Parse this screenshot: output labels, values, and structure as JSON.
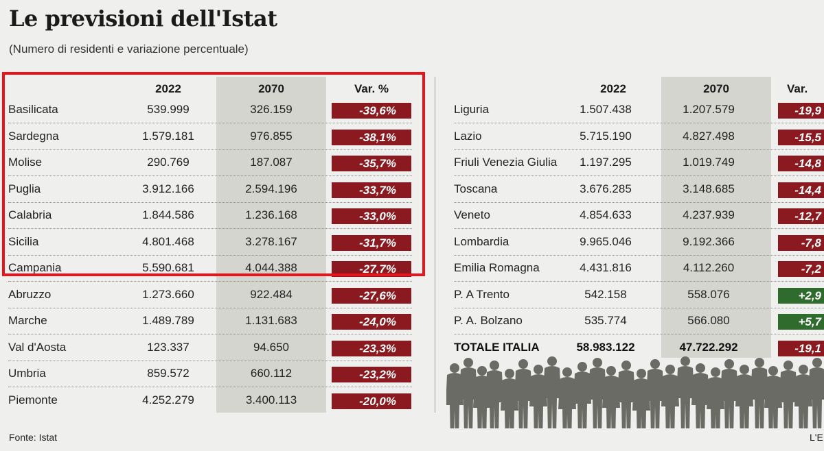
{
  "title": "Le previsioni dell'Istat",
  "subtitle": "(Numero di residenti e variazione percentuale)",
  "source": "Fonte: Istat",
  "credit": "L'E",
  "colors": {
    "negative": "#8a1a1f",
    "positive": "#2e6b2c",
    "highlight": "#e8141c",
    "shade": "#d5d5cf"
  },
  "chart_data": {
    "type": "table",
    "title": "Le previsioni dell'Istat",
    "subtitle": "(Numero di residenti e variazione percentuale)",
    "columns": [
      "",
      "2022",
      "2070",
      "Var. %"
    ],
    "right_columns": [
      "",
      "2022",
      "2070",
      "Var."
    ],
    "left_rows": [
      {
        "region": "Basilicata",
        "y2022": "539.999",
        "y2070": "326.159",
        "var": "-39,6%",
        "value": -39.6
      },
      {
        "region": "Sardegna",
        "y2022": "1.579.181",
        "y2070": "976.855",
        "var": "-38,1%",
        "value": -38.1
      },
      {
        "region": "Molise",
        "y2022": "290.769",
        "y2070": "187.087",
        "var": "-35,7%",
        "value": -35.7
      },
      {
        "region": "Puglia",
        "y2022": "3.912.166",
        "y2070": "2.594.196",
        "var": "-33,7%",
        "value": -33.7
      },
      {
        "region": "Calabria",
        "y2022": "1.844.586",
        "y2070": "1.236.168",
        "var": "-33,0%",
        "value": -33.0
      },
      {
        "region": "Sicilia",
        "y2022": "4.801.468",
        "y2070": "3.278.167",
        "var": "-31,7%",
        "value": -31.7
      },
      {
        "region": "Campania",
        "y2022": "5.590.681",
        "y2070": "4.044.388",
        "var": "-27,7%",
        "value": -27.7
      },
      {
        "region": "Abruzzo",
        "y2022": "1.273.660",
        "y2070": "922.484",
        "var": "-27,6%",
        "value": -27.6
      },
      {
        "region": "Marche",
        "y2022": "1.489.789",
        "y2070": "1.131.683",
        "var": "-24,0%",
        "value": -24.0
      },
      {
        "region": "Val d'Aosta",
        "y2022": "123.337",
        "y2070": "94.650",
        "var": "-23,3%",
        "value": -23.3
      },
      {
        "region": "Umbria",
        "y2022": "859.572",
        "y2070": "660.112",
        "var": "-23,2%",
        "value": -23.2
      },
      {
        "region": "Piemonte",
        "y2022": "4.252.279",
        "y2070": "3.400.113",
        "var": "-20,0%",
        "value": -20.0
      }
    ],
    "right_rows": [
      {
        "region": "Liguria",
        "y2022": "1.507.438",
        "y2070": "1.207.579",
        "var": "-19,9",
        "value": -19.9
      },
      {
        "region": "Lazio",
        "y2022": "5.715.190",
        "y2070": "4.827.498",
        "var": "-15,5",
        "value": -15.5
      },
      {
        "region": "Friuli Venezia Giulia",
        "y2022": "1.197.295",
        "y2070": "1.019.749",
        "var": "-14,8",
        "value": -14.8
      },
      {
        "region": "Toscana",
        "y2022": "3.676.285",
        "y2070": "3.148.685",
        "var": "-14,4",
        "value": -14.4
      },
      {
        "region": "Veneto",
        "y2022": "4.854.633",
        "y2070": "4.237.939",
        "var": "-12,7",
        "value": -12.7
      },
      {
        "region": "Lombardia",
        "y2022": "9.965.046",
        "y2070": "9.192.366",
        "var": "-7,8",
        "value": -7.8
      },
      {
        "region": "Emilia Romagna",
        "y2022": "4.431.816",
        "y2070": "4.112.260",
        "var": "-7,2",
        "value": -7.2
      },
      {
        "region": "P. A Trento",
        "y2022": "542.158",
        "y2070": "558.076",
        "var": "+2,9",
        "value": 2.9
      },
      {
        "region": "P. A. Bolzano",
        "y2022": "535.774",
        "y2070": "566.080",
        "var": "+5,7",
        "value": 5.7
      }
    ],
    "total": {
      "region": "TOTALE ITALIA",
      "y2022": "58.983.122",
      "y2070": "47.722.292",
      "var": "-19,1",
      "value": -19.1
    },
    "highlighted_regions": [
      "Basilicata",
      "Sardegna",
      "Molise",
      "Puglia",
      "Calabria",
      "Sicilia",
      "Campania"
    ]
  }
}
